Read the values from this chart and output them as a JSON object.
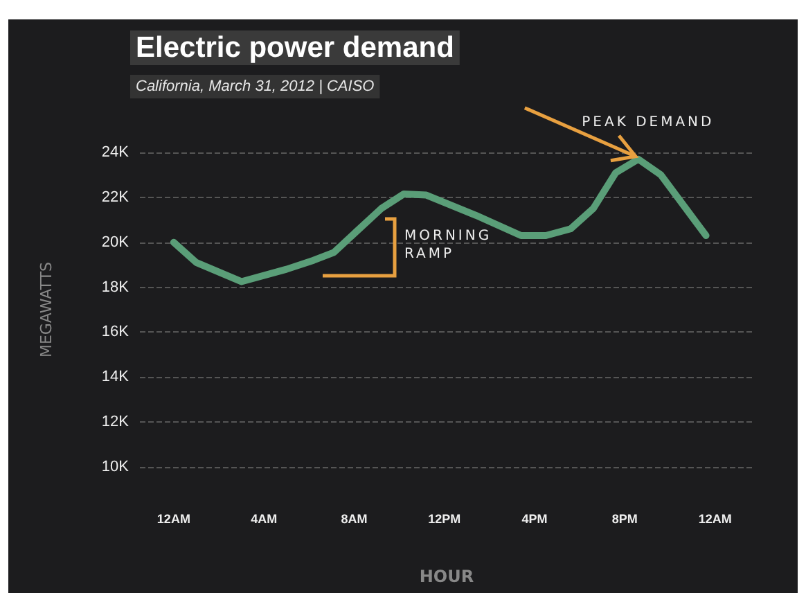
{
  "chart_data": {
    "type": "line",
    "title": "Electric power demand",
    "subtitle": "California, March 31, 2012 | CAISO",
    "xlabel": "HOUR",
    "ylabel": "MEGAWATTS",
    "x": [
      "2012-03-31T00:00",
      "2012-03-31T01:00",
      "2012-03-31T03:00",
      "2012-03-31T05:00",
      "2012-03-31T06:12",
      "2012-03-31T07:06",
      "2012-03-31T09:12",
      "2012-03-31T10:12",
      "2012-03-31T11:12",
      "2012-03-31T13:24",
      "2012-03-31T15:24",
      "2012-03-31T16:30",
      "2012-03-31T17:36",
      "2012-03-31T18:36",
      "2012-03-31T19:36",
      "2012-03-31T20:36",
      "2012-03-31T21:36",
      "2012-03-31T23:36"
    ],
    "series": [
      {
        "color": "#5a9e78",
        "values": [
          20000,
          19100,
          18250,
          18800,
          19200,
          19550,
          21500,
          22150,
          22100,
          21200,
          20300,
          20300,
          20600,
          21500,
          23100,
          23700,
          23000,
          20300
        ]
      }
    ],
    "xlim": [
      "2012-03-30T22:30",
      "2012-04-01T01:42"
    ],
    "xticks": [
      {
        "value": "2012-03-31T00:00",
        "label": "12AM"
      },
      {
        "value": "2012-03-31T04:00",
        "label": "4AM"
      },
      {
        "value": "2012-03-31T08:00",
        "label": "8AM"
      },
      {
        "value": "2012-03-31T12:00",
        "label": "12PM"
      },
      {
        "value": "2012-03-31T16:00",
        "label": "4PM"
      },
      {
        "value": "2012-03-31T20:00",
        "label": "8PM"
      },
      {
        "value": "2012-04-01T00:00",
        "label": "12AM"
      }
    ],
    "ylim": [
      10000,
      24000
    ],
    "yticks": [
      {
        "value": 10000,
        "label": "10K"
      },
      {
        "value": 12000,
        "label": "12K"
      },
      {
        "value": 14000,
        "label": "14K"
      },
      {
        "value": 16000,
        "label": "16K"
      },
      {
        "value": 18000,
        "label": "18K"
      },
      {
        "value": 20000,
        "label": "20K"
      },
      {
        "value": 22000,
        "label": "22K"
      },
      {
        "value": 24000,
        "label": "24K"
      }
    ],
    "grid": "y",
    "marker": "none",
    "annotations": [
      "MORNING RAMP",
      {
        "text": "PEAK DEMAND",
        "x": "2012-03-31T20:36",
        "y": 23700
      }
    ]
  }
}
